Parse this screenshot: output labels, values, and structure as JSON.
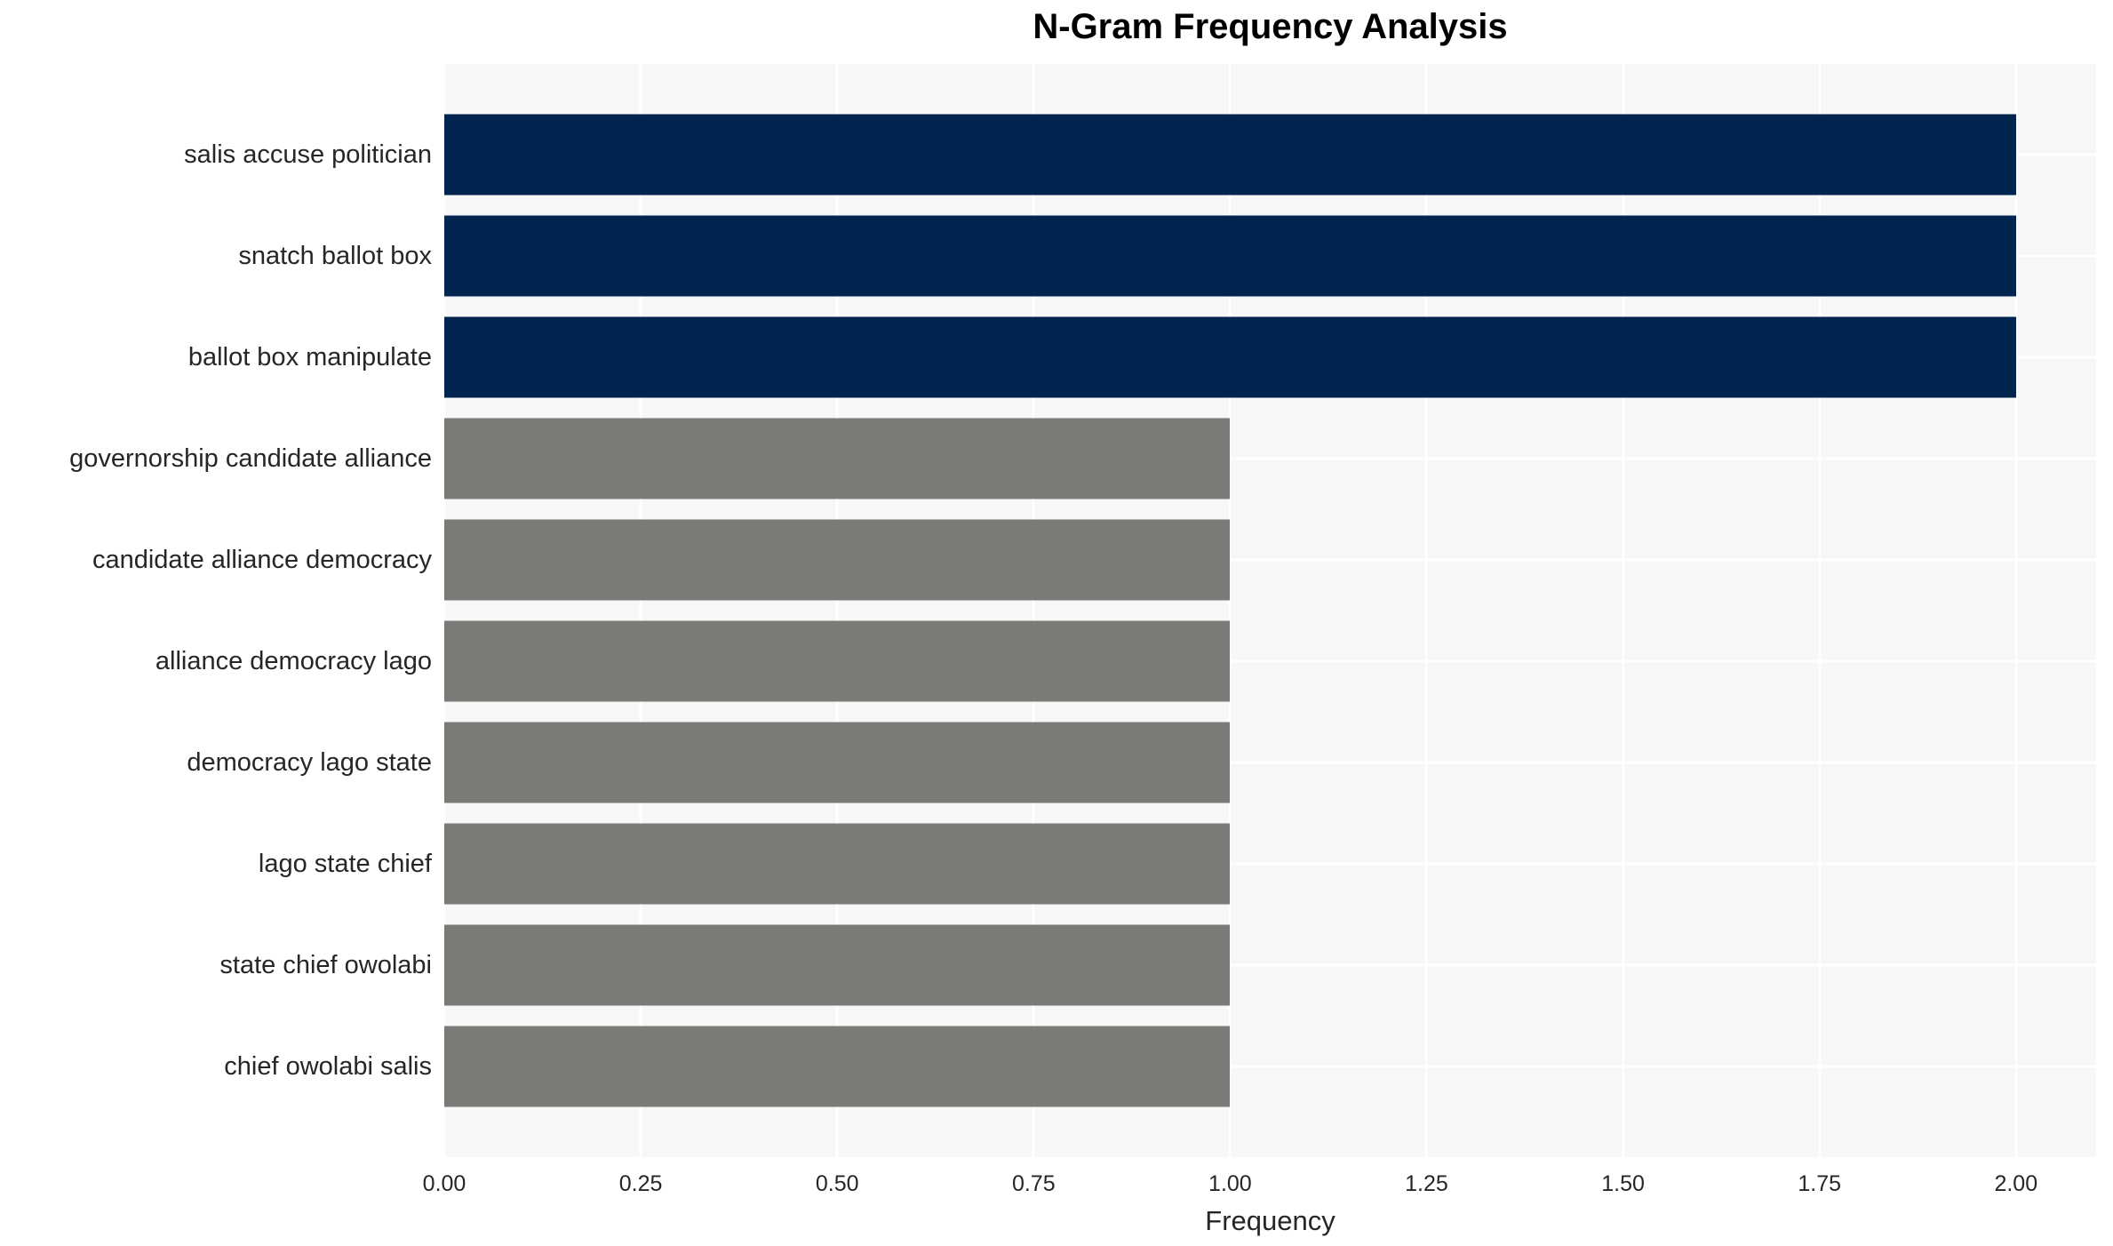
{
  "chart_data": {
    "type": "bar",
    "orientation": "horizontal",
    "title": "N-Gram Frequency Analysis",
    "xlabel": "Frequency",
    "ylabel": "",
    "categories": [
      "salis accuse politician",
      "snatch ballot box",
      "ballot box manipulate",
      "governorship candidate alliance",
      "candidate alliance democracy",
      "alliance democracy lago",
      "democracy lago state",
      "lago state chief",
      "state chief owolabi",
      "chief owolabi salis"
    ],
    "values": [
      2,
      2,
      2,
      1,
      1,
      1,
      1,
      1,
      1,
      1
    ],
    "bar_colors": [
      "#02254F",
      "#02254F",
      "#02254F",
      "#7B7A76",
      "#7B7A76",
      "#7B7A76",
      "#7B7A76",
      "#7B7A76",
      "#7B7A76",
      "#7B7A76"
    ],
    "x_ticks": [
      "0.00",
      "0.25",
      "0.50",
      "0.75",
      "1.00",
      "1.25",
      "1.50",
      "1.75",
      "2.00"
    ],
    "xlim": [
      0,
      2.102
    ],
    "grid": true,
    "legend": false,
    "colors": {
      "high_frequency_bar": "#02254F",
      "low_frequency_bar": "#7B7A76",
      "plot_background": "#F7F7F7",
      "gridline": "#FFFFFF",
      "tick_text": "#262626",
      "title_text": "#000000"
    }
  }
}
